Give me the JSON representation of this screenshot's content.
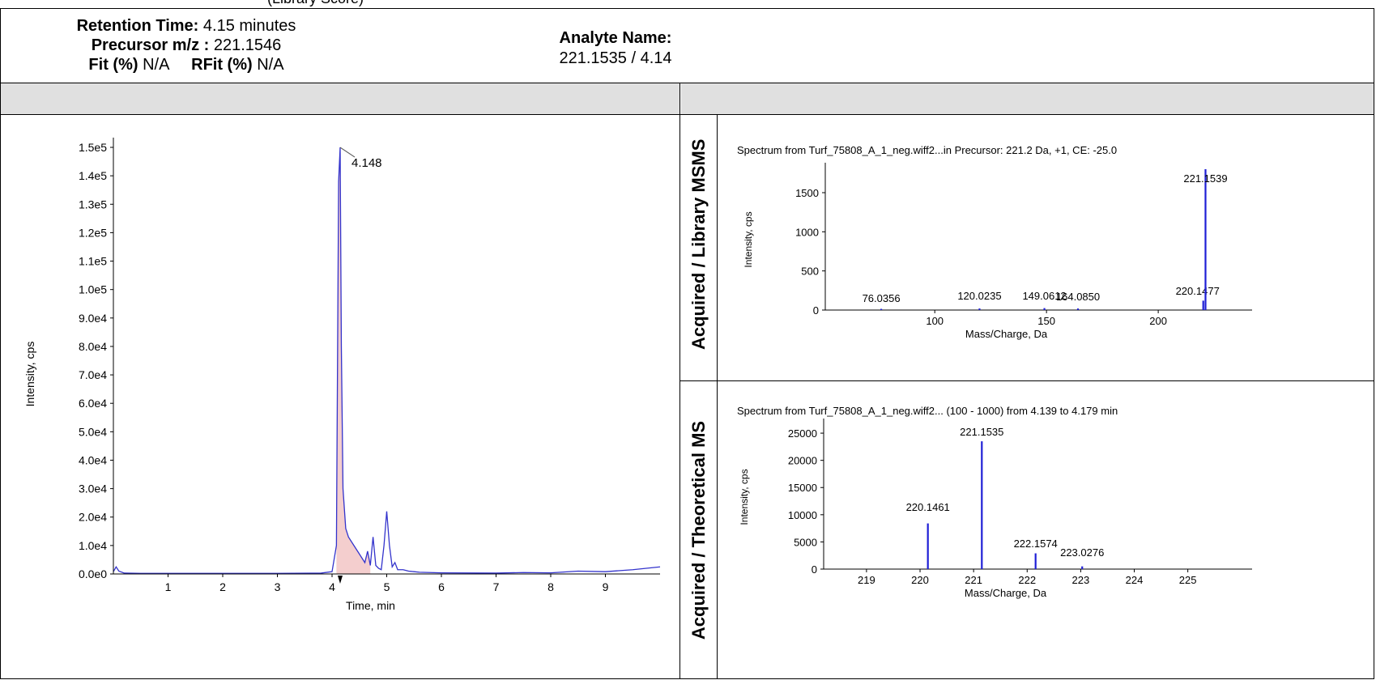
{
  "header": {
    "cut_title": "(Library Score)",
    "retention_label": "Retention Time:",
    "retention_value": "4.15 minutes",
    "precursor_label": "Precursor m/z :",
    "precursor_value": "221.1546",
    "fit_label": "Fit (%)",
    "fit_value": "N/A",
    "rfit_label": "RFit (%)",
    "rfit_value": "N/A",
    "analyte_label": "Analyte Name:",
    "analyte_value": "221.1535 / 4.14"
  },
  "side_labels": {
    "top": "Acquired / Library MSMS",
    "bottom": "Acquired / Theoretical MS"
  },
  "colors": {
    "trace": "#3333cc",
    "fill": "#f2c6c6",
    "peak": "#1f1fd6",
    "axis": "#000000"
  },
  "chart_data": [
    {
      "type": "line",
      "name": "xic",
      "title": "",
      "xlabel": "Time, min",
      "ylabel": "Intensity, cps",
      "xlim": [
        0,
        10
      ],
      "ylim": [
        0,
        152000
      ],
      "x_ticks": [
        "1",
        "2",
        "3",
        "4",
        "5",
        "6",
        "7",
        "8",
        "9"
      ],
      "y_ticks": [
        "0.0e0",
        "1.0e4",
        "2.0e4",
        "3.0e4",
        "4.0e4",
        "5.0e4",
        "6.0e4",
        "7.0e4",
        "8.0e4",
        "9.0e4",
        "1.0e5",
        "1.1e5",
        "1.2e5",
        "1.3e5",
        "1.4e5",
        "1.5e5"
      ],
      "peak_label": "4.148",
      "series": [
        {
          "x": [
            0,
            0.05,
            0.1,
            0.2,
            0.5,
            1,
            2,
            3,
            3.8,
            4.0,
            4.08,
            4.12,
            4.148,
            4.17,
            4.2,
            4.25,
            4.3,
            4.4,
            4.5,
            4.6,
            4.65,
            4.7,
            4.75,
            4.8,
            4.85,
            4.9,
            4.95,
            5.0,
            5.05,
            5.1,
            5.15,
            5.2,
            5.3,
            5.4,
            5.5,
            5.6,
            6,
            7,
            7.5,
            8,
            8.5,
            9,
            9.5,
            10
          ],
          "y": [
            800,
            2500,
            1000,
            300,
            200,
            200,
            200,
            200,
            300,
            800,
            10000,
            138000,
            150000,
            80000,
            30000,
            16000,
            13000,
            10000,
            7000,
            4000,
            8000,
            3000,
            13000,
            3000,
            2000,
            1500,
            10000,
            22000,
            10000,
            2500,
            4000,
            1500,
            1500,
            1000,
            800,
            600,
            400,
            300,
            500,
            400,
            1000,
            800,
            1500,
            2500
          ]
        }
      ]
    },
    {
      "type": "bar",
      "name": "msms",
      "title": "Spectrum from Turf_75808_A_1_neg.wiff2...in Precursor: 221.2 Da, +1, CE: -25.0",
      "xlabel": "Mass/Charge, Da",
      "ylabel": "Intensity, cps",
      "xlim": [
        51,
        242
      ],
      "ylim": [
        0,
        1800
      ],
      "x_ticks": [
        "100",
        "150",
        "200"
      ],
      "y_ticks": [
        "0",
        "500",
        "1000",
        "1500"
      ],
      "x": [
        76.0356,
        120.0235,
        149.0612,
        164.085,
        220.1477,
        221.1539
      ],
      "y": [
        15,
        20,
        25,
        20,
        120,
        1800
      ],
      "labels": [
        "76.0356",
        "120.0235",
        "149.0612",
        "164.0850",
        "220.1477",
        "221.1539"
      ]
    },
    {
      "type": "bar",
      "name": "ms",
      "title": "Spectrum from Turf_75808_A_1_neg.wiff2... (100 - 1000) from 4.139 to 4.179 min",
      "xlabel": "Mass/Charge, Da",
      "ylabel": "Intensity, cps",
      "xlim": [
        218.2,
        226.2
      ],
      "ylim": [
        0,
        26500
      ],
      "x_ticks": [
        "219",
        "220",
        "221",
        "222",
        "223",
        "224",
        "225"
      ],
      "y_ticks": [
        "0",
        "5000",
        "10000",
        "15000",
        "20000",
        "25000"
      ],
      "x": [
        220.1461,
        221.1535,
        222.1574,
        223.0276
      ],
      "y": [
        8400,
        23500,
        2900,
        500
      ],
      "labels": [
        "220.1461",
        "221.1535",
        "222.1574",
        "223.0276"
      ]
    }
  ]
}
